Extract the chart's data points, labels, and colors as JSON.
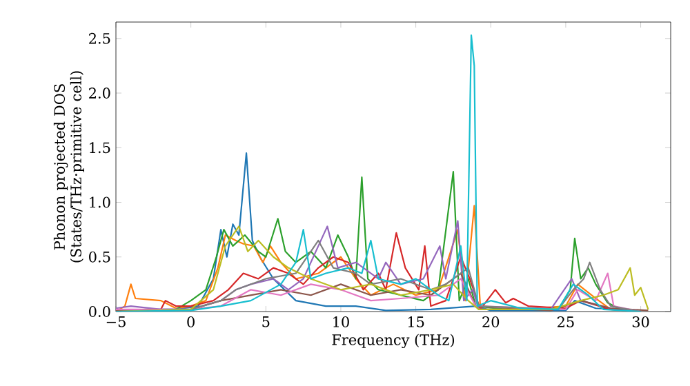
{
  "chart_data": {
    "type": "line",
    "xlabel": "Frequency (THz)",
    "ylabel": "Phonon projected DOS (States/THz·primitive cell)",
    "xlim": [
      -5,
      32
    ],
    "ylim": [
      0,
      2.65
    ],
    "xticks": [
      {
        "value": -5,
        "label": "−5"
      },
      0,
      5,
      10,
      15,
      20,
      25,
      30
    ],
    "yticks": [
      {
        "value": 0,
        "label": "0.0"
      },
      {
        "value": 0.5,
        "label": "0.5"
      },
      {
        "value": 1,
        "label": "1.0"
      },
      {
        "value": 1.5,
        "label": "1.5"
      },
      {
        "value": 2,
        "label": "2.0"
      },
      {
        "value": 2.5,
        "label": "2.5"
      }
    ],
    "series": [
      {
        "color": "#1f77b4",
        "x": [
          -5,
          -3,
          -1,
          0.5,
          1.5,
          2,
          2.4,
          2.8,
          3.2,
          3.7,
          4.1,
          4.6,
          5.5,
          7,
          9,
          11,
          13,
          16,
          19,
          20,
          25,
          25.6,
          27,
          30
        ],
        "values": [
          0,
          0.02,
          0.02,
          0.05,
          0.3,
          0.75,
          0.5,
          0.8,
          0.7,
          1.45,
          0.65,
          0.5,
          0.3,
          0.1,
          0.05,
          0.05,
          0.01,
          0.02,
          0.05,
          0.01,
          0.01,
          0.1,
          0.03,
          0.01
        ]
      },
      {
        "color": "#ff7f0e",
        "x": [
          -5,
          -4.4,
          -4,
          -3.7,
          -2,
          -1,
          0,
          1,
          1.8,
          2.3,
          3,
          3.5,
          4.2,
          4.8,
          5.3,
          6,
          7,
          8.5,
          10,
          11,
          12,
          13.5,
          15,
          16.5,
          17.8,
          18.3,
          18.9,
          19.3,
          22,
          25,
          25.8,
          27,
          28,
          30
        ],
        "values": [
          0,
          0.05,
          0.25,
          0.12,
          0.1,
          0.03,
          0.05,
          0.1,
          0.4,
          0.7,
          0.65,
          0.62,
          0.6,
          0.45,
          0.6,
          0.45,
          0.3,
          0.35,
          0.5,
          0.3,
          0.15,
          0.25,
          0.15,
          0.2,
          0.75,
          0.1,
          0.97,
          0.05,
          0.02,
          0.05,
          0.25,
          0.12,
          0.02,
          0
        ]
      },
      {
        "color": "#2ca02c",
        "x": [
          -5,
          -1,
          0,
          1,
          1.7,
          2.2,
          2.8,
          3.6,
          4.5,
          5,
          5.8,
          6.3,
          7,
          8,
          9,
          9.8,
          10.5,
          11,
          11.4,
          11.8,
          12.5,
          14,
          15.5,
          16.5,
          17.5,
          17.9,
          18.5,
          19,
          21,
          24.5,
          25.3,
          25.6,
          26,
          26.5,
          27,
          27.8,
          28.5,
          30
        ],
        "values": [
          0,
          0.02,
          0.1,
          0.2,
          0.5,
          0.75,
          0.6,
          0.7,
          0.55,
          0.5,
          0.85,
          0.55,
          0.45,
          0.55,
          0.4,
          0.7,
          0.5,
          0.3,
          1.23,
          0.3,
          0.2,
          0.15,
          0.1,
          0.2,
          1.28,
          0.1,
          0.3,
          0.05,
          0.02,
          0.02,
          0.2,
          0.67,
          0.3,
          0.4,
          0.25,
          0.08,
          0.03,
          0
        ]
      },
      {
        "color": "#d62728",
        "x": [
          -5,
          -2,
          -1.7,
          -1,
          0,
          1.5,
          2.5,
          3.5,
          4.5,
          5.5,
          6.5,
          7.5,
          8.5,
          9.5,
          10.5,
          11.5,
          12.5,
          13,
          13.7,
          14.3,
          15.2,
          15.6,
          16,
          17,
          18,
          18.6,
          19.3,
          20.3,
          21,
          21.5,
          22.5,
          25,
          26,
          28,
          30
        ],
        "values": [
          0,
          0.02,
          0.1,
          0.05,
          0.05,
          0.1,
          0.2,
          0.35,
          0.3,
          0.4,
          0.35,
          0.25,
          0.4,
          0.5,
          0.45,
          0.2,
          0.35,
          0.2,
          0.72,
          0.4,
          0.2,
          0.6,
          0.05,
          0.1,
          0.5,
          0.3,
          0.02,
          0.2,
          0.08,
          0.12,
          0.05,
          0.03,
          0.1,
          0.02,
          0
        ]
      },
      {
        "color": "#9467bd",
        "x": [
          -5,
          -4,
          -2,
          0,
          2,
          3,
          4,
          5.5,
          6.5,
          7.5,
          8.5,
          9.1,
          9.8,
          11,
          12.5,
          13,
          14,
          15.5,
          16.6,
          17,
          17.8,
          18.2,
          18.8,
          19.2,
          24,
          25.4,
          26,
          28,
          30
        ],
        "values": [
          0.03,
          0.05,
          0.02,
          0.02,
          0.1,
          0.2,
          0.25,
          0.3,
          0.2,
          0.3,
          0.6,
          0.78,
          0.4,
          0.45,
          0.3,
          0.45,
          0.25,
          0.3,
          0.6,
          0.3,
          0.83,
          0.1,
          0.2,
          0.02,
          0.02,
          0.3,
          0.1,
          0.03,
          0
        ]
      },
      {
        "color": "#8c564b",
        "x": [
          -5,
          0,
          2,
          4,
          6,
          8,
          10,
          12,
          14,
          16,
          18,
          19,
          24,
          26,
          28,
          30.5
        ],
        "values": [
          0.01,
          0.02,
          0.1,
          0.15,
          0.2,
          0.15,
          0.25,
          0.15,
          0.2,
          0.15,
          0.35,
          0.05,
          0.01,
          0.1,
          0.03,
          0.01
        ]
      },
      {
        "color": "#e377c2",
        "x": [
          -5,
          0,
          2,
          4,
          6,
          8,
          10,
          12,
          14,
          16.5,
          18,
          19,
          25,
          25.8,
          27,
          27.8,
          28.2,
          30
        ],
        "values": [
          0.02,
          0.02,
          0.05,
          0.2,
          0.15,
          0.25,
          0.2,
          0.1,
          0.12,
          0.15,
          0.3,
          0.05,
          0.02,
          0.2,
          0.1,
          0.35,
          0.05,
          0
        ]
      },
      {
        "color": "#7f7f7f",
        "x": [
          -5,
          0,
          2,
          3,
          5,
          7,
          8,
          8.5,
          9.5,
          11,
          12,
          14,
          16,
          17,
          18.5,
          19.2,
          24.5,
          25.5,
          26.2,
          26.6,
          27.3,
          28,
          30
        ],
        "values": [
          0,
          0.02,
          0.1,
          0.2,
          0.3,
          0.35,
          0.55,
          0.65,
          0.4,
          0.35,
          0.25,
          0.3,
          0.2,
          0.25,
          0.4,
          0.05,
          0.02,
          0.2,
          0.3,
          0.45,
          0.2,
          0.05,
          0
        ]
      },
      {
        "color": "#bcbd22",
        "x": [
          -5,
          0,
          1.5,
          2.3,
          3.2,
          3.8,
          4.5,
          5.5,
          6.5,
          8,
          10,
          12,
          14,
          16,
          17.5,
          18.5,
          19.2,
          24,
          26,
          27.5,
          28.5,
          29.3,
          29.6,
          30,
          30.5
        ],
        "values": [
          0,
          0.02,
          0.2,
          0.6,
          0.78,
          0.55,
          0.65,
          0.5,
          0.4,
          0.3,
          0.2,
          0.25,
          0.15,
          0.2,
          0.25,
          0.1,
          0.02,
          0.02,
          0.1,
          0.15,
          0.2,
          0.4,
          0.15,
          0.22,
          0.02
        ]
      },
      {
        "color": "#17becf",
        "x": [
          -5,
          0,
          2,
          4,
          6,
          7,
          7.5,
          8,
          9,
          10.5,
          11.4,
          12,
          12.5,
          14,
          15,
          16.5,
          17.2,
          18,
          18.4,
          18.7,
          18.9,
          19.1,
          20,
          22,
          24.5,
          25.5,
          26.5,
          27.5,
          30
        ],
        "values": [
          0,
          0.01,
          0.05,
          0.1,
          0.25,
          0.45,
          0.75,
          0.3,
          0.35,
          0.4,
          0.35,
          0.65,
          0.3,
          0.25,
          0.3,
          0.15,
          0.1,
          0.6,
          0.1,
          2.53,
          2.25,
          0.05,
          0.1,
          0.03,
          0.02,
          0.25,
          0.15,
          0.02,
          0
        ]
      }
    ]
  }
}
